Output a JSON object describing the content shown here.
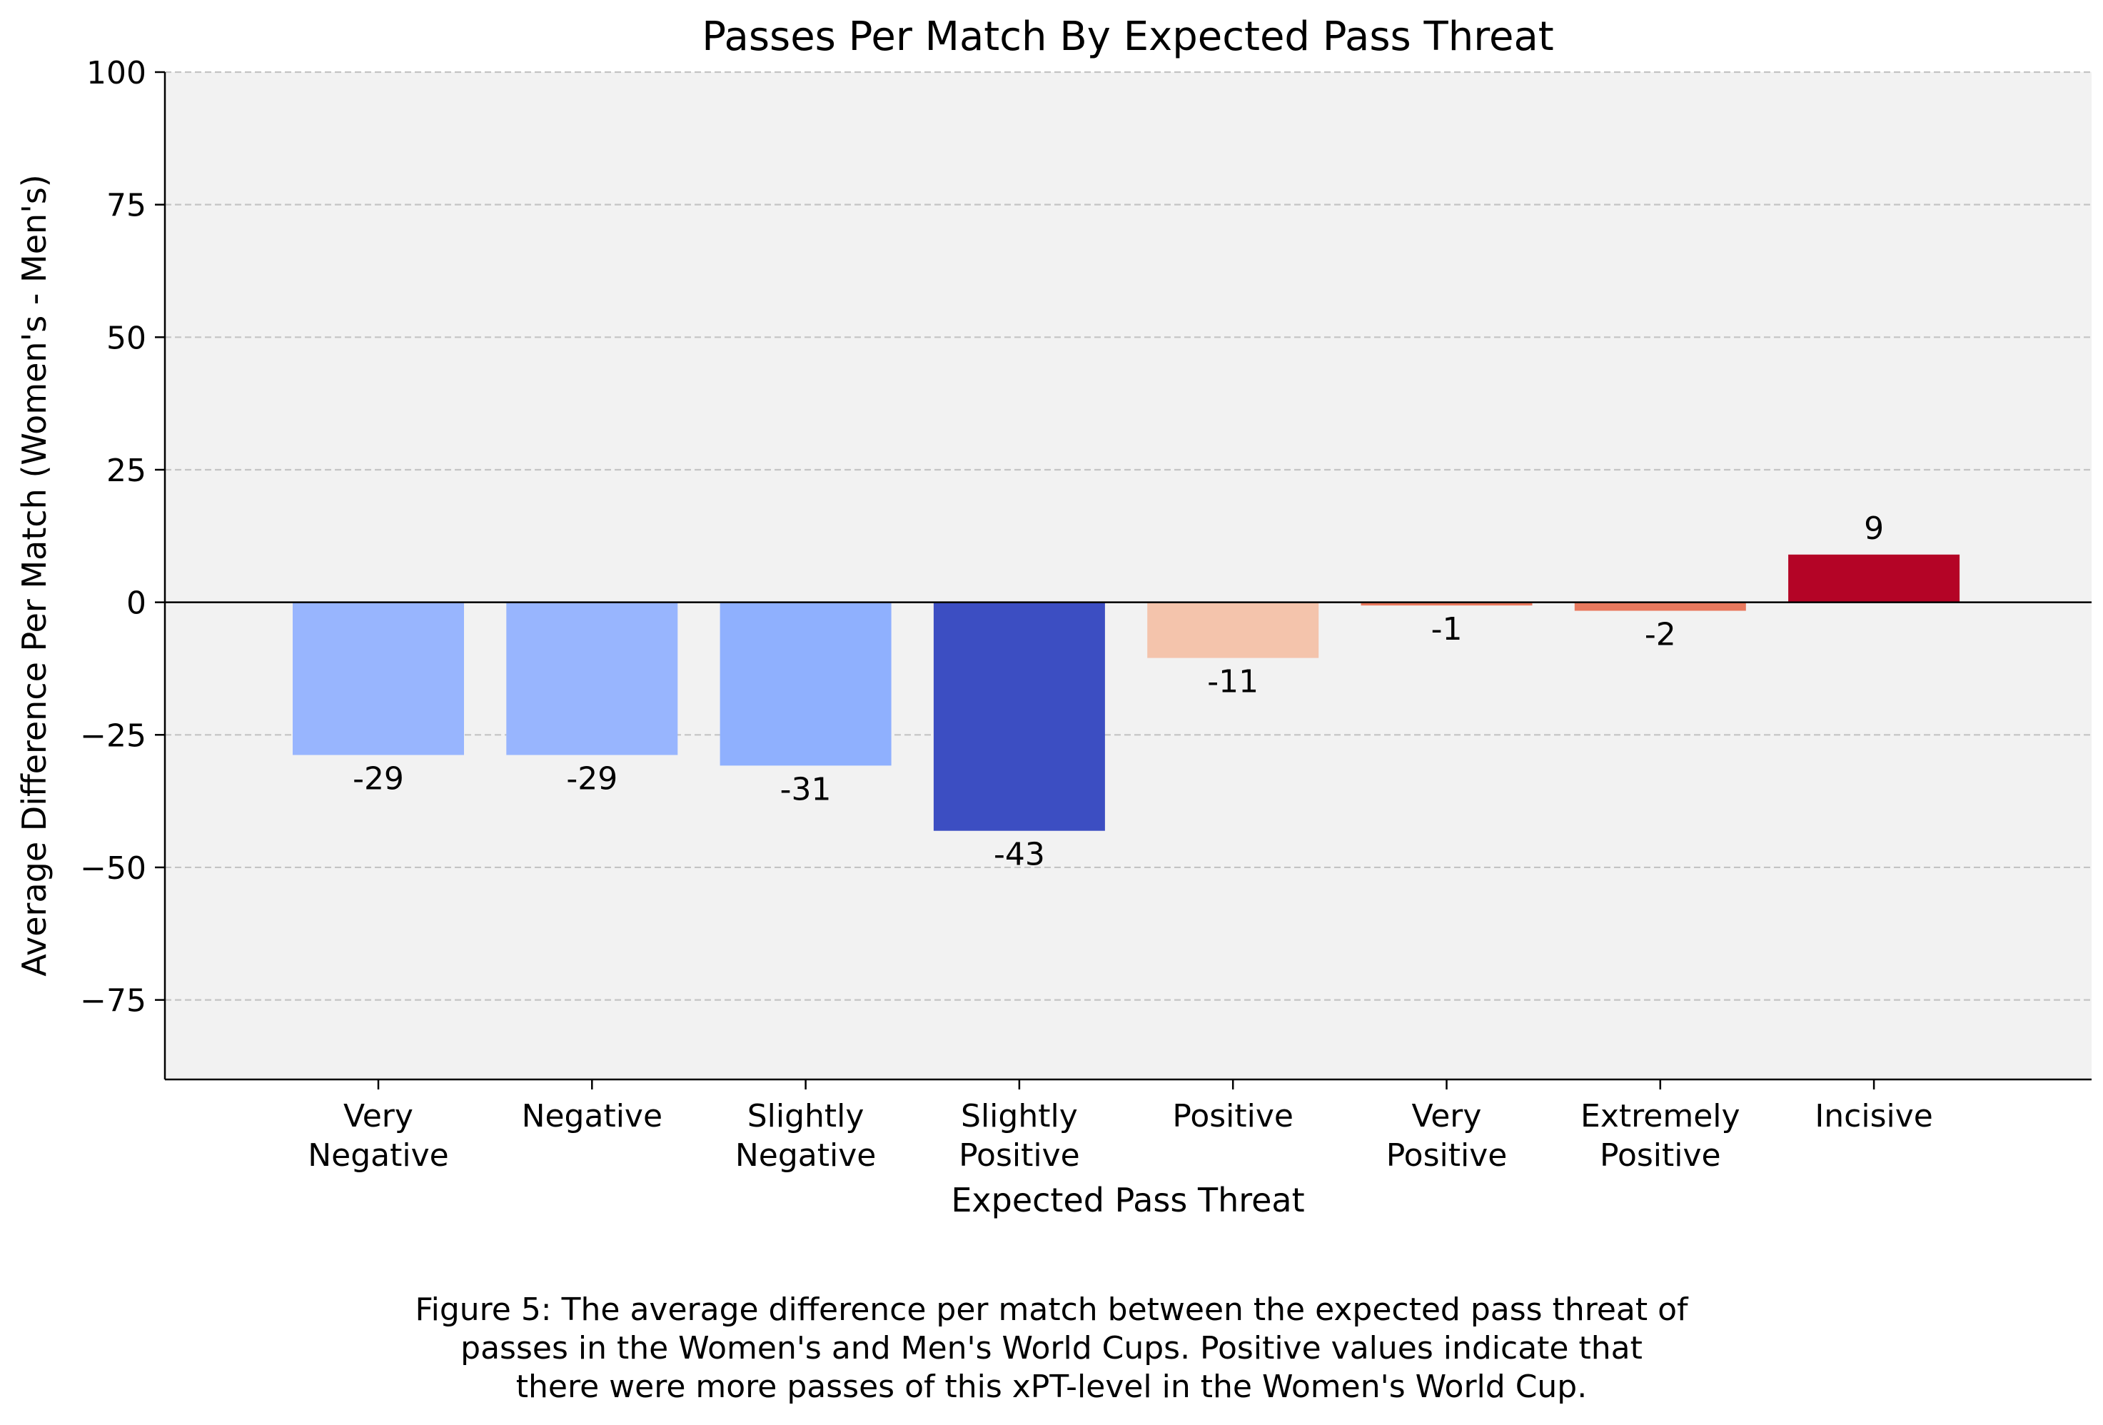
{
  "chart_data": {
    "type": "bar",
    "title": "Passes Per Match By Expected Pass Threat",
    "xlabel": "Expected Pass Threat",
    "ylabel": "Average Difference Per Match (Women's - Men's)",
    "categories": [
      [
        "Very",
        "Negative"
      ],
      [
        "Negative"
      ],
      [
        "Slightly",
        "Negative"
      ],
      [
        "Slightly",
        "Positive"
      ],
      [
        "Positive"
      ],
      [
        "Very",
        "Positive"
      ],
      [
        "Extremely",
        "Positive"
      ],
      [
        "Incisive"
      ]
    ],
    "values": [
      -28.8,
      -28.8,
      -30.8,
      -43.1,
      -10.5,
      -0.6,
      -1.6,
      9.0
    ],
    "data_labels": [
      "-29",
      "-29",
      "-31",
      "-43",
      "-11",
      "-1",
      "-2",
      "9"
    ],
    "colors": [
      "#98b5fe",
      "#98b5fe",
      "#8fb0fe",
      "#3c4ec2",
      "#f4c4ac",
      "#e9785d",
      "#e8795e",
      "#b40426"
    ],
    "ylim": [
      -90,
      100
    ],
    "yticks": [
      100,
      75,
      50,
      25,
      0,
      -25,
      -50,
      -75
    ],
    "ytick_labels": [
      "100",
      "75",
      "50",
      "25",
      "0",
      "−25",
      "−50",
      "−75"
    ],
    "grid": "y-dashed",
    "plot_background": "#f2f2f2",
    "zero_line": true
  },
  "caption": {
    "lines": [
      "Figure 5: The average difference per match between the expected pass threat of",
      "passes in the Women's and Men's World Cups. Positive values indicate that",
      "there were more passes of this xPT-level in the Women's World Cup."
    ]
  }
}
